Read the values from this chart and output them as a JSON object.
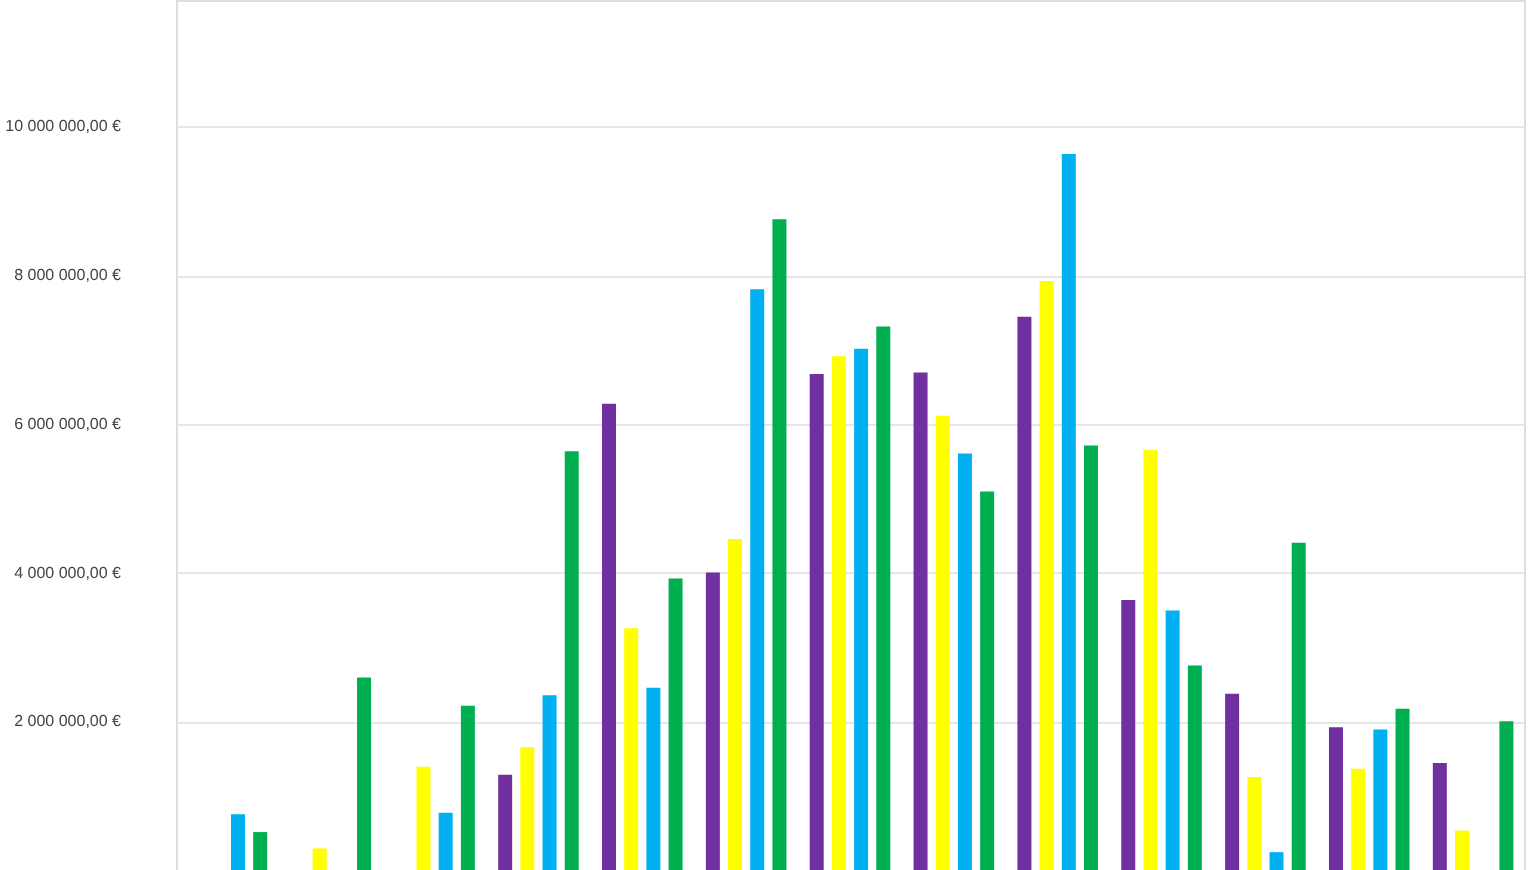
{
  "chart_data": {
    "type": "bar",
    "categories": [
      null,
      null,
      null,
      null,
      null,
      null,
      null,
      null,
      null,
      null,
      null,
      null,
      null
    ],
    "series": [
      {
        "color": "#7030a0",
        "values": [
          null,
          null,
          null,
          1280000,
          6270000,
          4000000,
          6670000,
          6690000,
          7440000,
          3630000,
          2370000,
          1920000,
          1440000
        ]
      },
      {
        "color": "#ffff00",
        "values": [
          null,
          290000,
          1390000,
          1650000,
          3250000,
          4450000,
          6910000,
          6110000,
          7920000,
          5650000,
          1250000,
          1360000,
          530000
        ]
      },
      {
        "color": "#00b0f0",
        "values": [
          750000,
          null,
          770000,
          2350000,
          2450000,
          7810000,
          7010000,
          5600000,
          9630000,
          3490000,
          240000,
          1890000,
          null
        ]
      },
      {
        "color": "#00b050",
        "values": [
          510000,
          2590000,
          2210000,
          5630000,
          3920000,
          8750000,
          7310000,
          5090000,
          5710000,
          2750000,
          4400000,
          2170000,
          2000000
        ]
      }
    ],
    "ylim": [
      0,
      11700000
    ],
    "yticks": [
      {
        "value": 2000000,
        "label": "2 000 000,00 €"
      },
      {
        "value": 4000000,
        "label": "4 000 000,00 €"
      },
      {
        "value": 6000000,
        "label": "6 000 000,00 €"
      },
      {
        "value": 8000000,
        "label": "8 000 000,00 €"
      },
      {
        "value": 10000000,
        "label": "10 000 000,00 €"
      }
    ],
    "grid": "y",
    "tick_labels": "y"
  }
}
